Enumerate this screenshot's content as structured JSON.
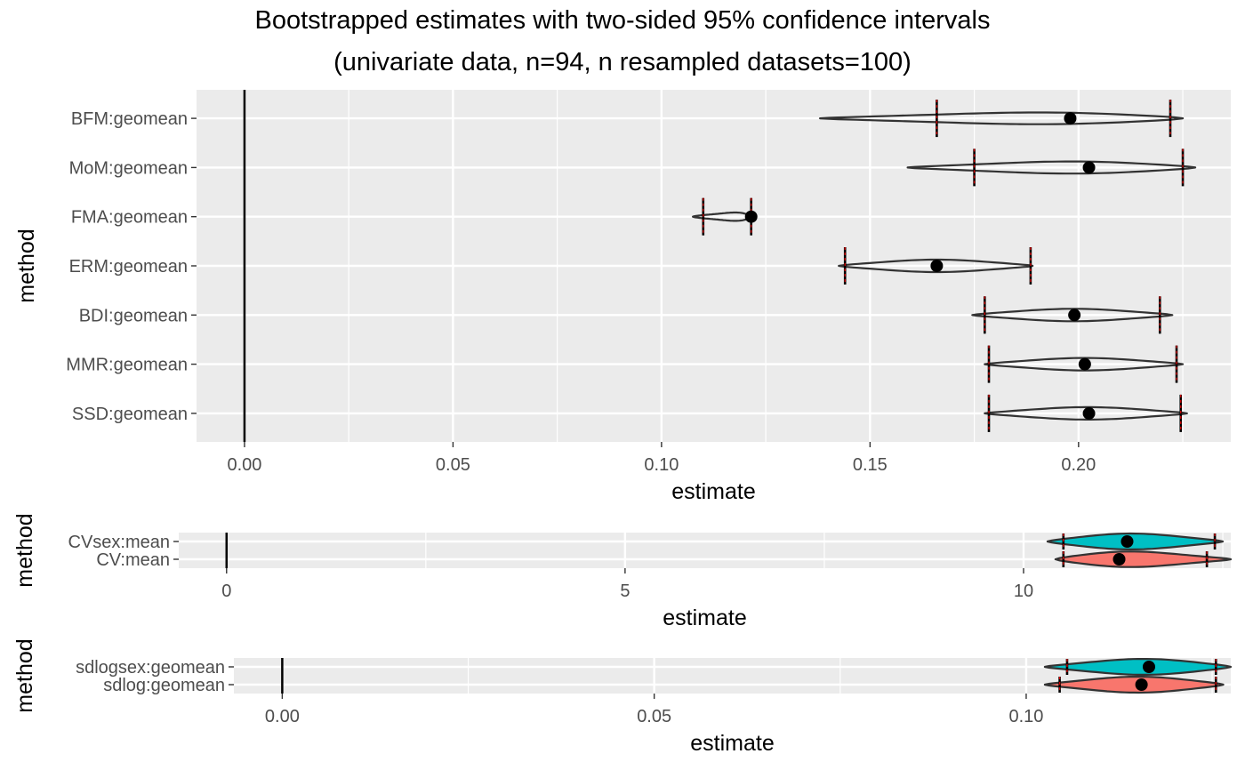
{
  "title_line1": "Bootstrapped estimates with two-sided 95% confidence intervals",
  "title_line2": "(univariate data, n=94, n resampled datasets=100)",
  "colors": {
    "panel_bg": "#ebebeb",
    "grid": "#ffffff",
    "violin_line": "#333333",
    "ci_line": "#000000",
    "ci_dash": "#cc0000",
    "fill_group1": "#00bfc4",
    "fill_group2": "#f8766d",
    "point": "#000000"
  },
  "chart_data": [
    {
      "type": "violin",
      "xlabel": "estimate",
      "ylabel": "method",
      "xlim": [
        -0.0115,
        0.2365
      ],
      "xticks": [
        0.0,
        0.05,
        0.1,
        0.15,
        0.2
      ],
      "xtick_labels": [
        "0.00",
        "0.05",
        "0.10",
        "0.15",
        "0.20"
      ],
      "reference_line": 0,
      "categories": [
        "BFM:geomean",
        "MoM:geomean",
        "FMA:geomean",
        "ERM:geomean",
        "BDI:geomean",
        "MMR:geomean",
        "SSD:geomean"
      ],
      "series": [
        {
          "category": "BFM:geomean",
          "estimate": 0.198,
          "ci": [
            0.166,
            0.222
          ],
          "range": [
            0.138,
            0.225
          ],
          "fill": "none"
        },
        {
          "category": "MoM:geomean",
          "estimate": 0.2025,
          "ci": [
            0.175,
            0.225
          ],
          "range": [
            0.159,
            0.228
          ],
          "fill": "none"
        },
        {
          "category": "FMA:geomean",
          "estimate": 0.1215,
          "ci": [
            0.11,
            0.1215
          ],
          "range": [
            0.1075,
            0.1215
          ],
          "fill": "none"
        },
        {
          "category": "ERM:geomean",
          "estimate": 0.166,
          "ci": [
            0.144,
            0.1885
          ],
          "range": [
            0.1425,
            0.189
          ],
          "fill": "none"
        },
        {
          "category": "BDI:geomean",
          "estimate": 0.199,
          "ci": [
            0.1775,
            0.2195
          ],
          "range": [
            0.1745,
            0.2225
          ],
          "fill": "none"
        },
        {
          "category": "MMR:geomean",
          "estimate": 0.2015,
          "ci": [
            0.1785,
            0.2235
          ],
          "range": [
            0.1775,
            0.225
          ],
          "fill": "none"
        },
        {
          "category": "SSD:geomean",
          "estimate": 0.2025,
          "ci": [
            0.1785,
            0.2245
          ],
          "range": [
            0.1775,
            0.226
          ],
          "fill": "none"
        }
      ]
    },
    {
      "type": "violin",
      "xlabel": "estimate",
      "ylabel": "method",
      "xlim": [
        -0.6,
        12.6
      ],
      "xticks": [
        0,
        5,
        10
      ],
      "xtick_labels": [
        "0",
        "5",
        "10"
      ],
      "reference_line": 0,
      "categories": [
        "CVsex:mean",
        "CV:mean"
      ],
      "series": [
        {
          "category": "CVsex:mean",
          "estimate": 11.3,
          "ci": [
            10.5,
            12.4
          ],
          "range": [
            10.3,
            12.5
          ],
          "fill": "group1"
        },
        {
          "category": "CV:mean",
          "estimate": 11.2,
          "ci": [
            10.5,
            12.3
          ],
          "range": [
            10.4,
            12.6
          ],
          "fill": "group2"
        }
      ]
    },
    {
      "type": "violin",
      "xlabel": "estimate",
      "ylabel": "method",
      "xlim": [
        -0.0065,
        0.1275
      ],
      "xticks": [
        0.0,
        0.05,
        0.1
      ],
      "xtick_labels": [
        "0.00",
        "0.05",
        "0.10"
      ],
      "reference_line": 0,
      "categories": [
        "sdlogsex:geomean",
        "sdlog:geomean"
      ],
      "series": [
        {
          "category": "sdlogsex:geomean",
          "estimate": 0.1165,
          "ci": [
            0.1055,
            0.1255
          ],
          "range": [
            0.1025,
            0.1275
          ],
          "fill": "group1"
        },
        {
          "category": "sdlog:geomean",
          "estimate": 0.1155,
          "ci": [
            0.1045,
            0.1255
          ],
          "range": [
            0.1025,
            0.1265
          ],
          "fill": "group2"
        }
      ]
    }
  ]
}
